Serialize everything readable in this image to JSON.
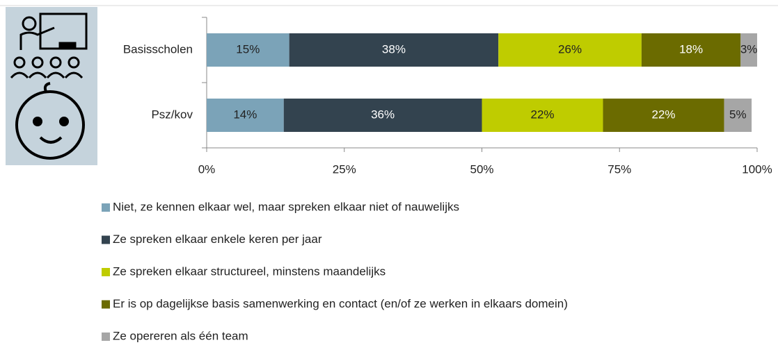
{
  "chart_data": {
    "type": "stacked-bar-horizontal",
    "categories": [
      "Basisscholen",
      "Psz/kov"
    ],
    "series": [
      {
        "name": "Niet, ze kennen elkaar wel, maar spreken elkaar niet of nauwelijks",
        "color": "#7ba3b8",
        "values": [
          15,
          14
        ],
        "value_labels": [
          "15%",
          "14%"
        ]
      },
      {
        "name": "Ze spreken elkaar enkele keren per jaar",
        "color": "#33434f",
        "values": [
          38,
          36
        ],
        "value_labels": [
          "38%",
          "36%"
        ]
      },
      {
        "name": "Ze spreken elkaar structureel, minstens maandelijks",
        "color": "#bfcc00",
        "values": [
          26,
          22
        ],
        "value_labels": [
          "26%",
          "22%"
        ]
      },
      {
        "name": "Er is op dagelijkse basis samenwerking en contact (en/of ze werken in elkaars domein)",
        "color": "#6b6b00",
        "values": [
          18,
          22
        ],
        "value_labels": [
          "18%",
          "22%"
        ]
      },
      {
        "name": "Ze opereren als één team",
        "color": "#a6a6a6",
        "values": [
          3,
          5
        ],
        "value_labels": [
          "3%",
          "5%"
        ]
      }
    ],
    "xlim": [
      0,
      100
    ],
    "xticks": [
      {
        "value": 0,
        "label": "0%"
      },
      {
        "value": 25,
        "label": "25%"
      },
      {
        "value": 50,
        "label": "50%"
      },
      {
        "value": 75,
        "label": "75%"
      },
      {
        "value": 100,
        "label": "100%"
      }
    ],
    "legend": "bottom"
  }
}
